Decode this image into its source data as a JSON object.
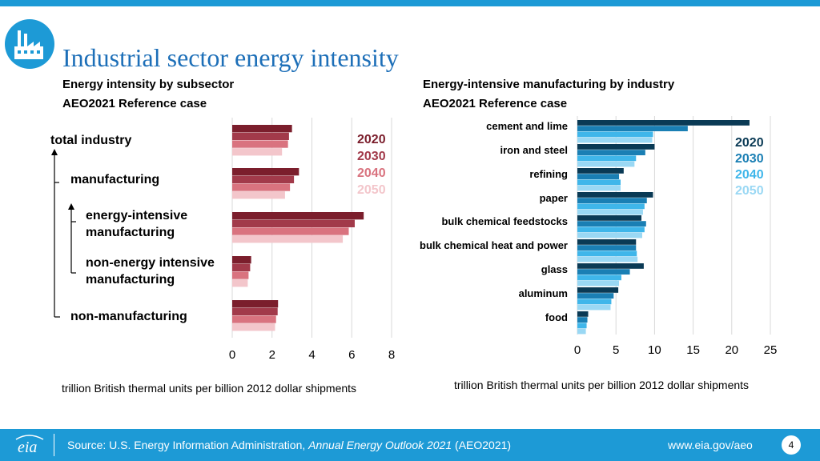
{
  "header": {
    "title": "Industrial sector energy intensity"
  },
  "left": {
    "subtitle1": "Energy intensity by subsector",
    "subtitle2": "AEO2021 Reference case",
    "labels": [
      "total industry",
      "manufacturing",
      "energy-intensive manufacturing",
      "non-energy intensive manufacturing",
      "non-manufacturing"
    ],
    "label_lines": [
      [
        "total industry"
      ],
      [
        "manufacturing"
      ],
      [
        "energy-intensive",
        "manufacturing"
      ],
      [
        "non-energy intensive",
        "manufacturing"
      ],
      [
        "non-manufacturing"
      ]
    ],
    "unit": "trillion British thermal units per billion 2012 dollar shipments"
  },
  "right": {
    "subtitle1": "Energy-intensive manufacturing by industry",
    "subtitle2": "AEO2021 Reference case",
    "unit": "trillion British thermal units per billion 2012 dollar shipments"
  },
  "footer": {
    "source_prefix": "Source: U.S. Energy Information Administration, ",
    "source_italic": "Annual Energy Outlook 2021",
    "source_suffix": " (AEO2021)",
    "url": "www.eia.gov/aeo",
    "page": "4",
    "logo_text": "eia"
  },
  "chart_data": [
    {
      "type": "bar",
      "orientation": "horizontal",
      "title": "Energy intensity by subsector",
      "categories": [
        "total industry",
        "manufacturing",
        "energy-intensive manufacturing",
        "non-energy intensive manufacturing",
        "non-manufacturing"
      ],
      "series": [
        {
          "name": "2020",
          "color": "#7b1e2c",
          "values": [
            3.0,
            3.35,
            6.6,
            0.95,
            2.3
          ]
        },
        {
          "name": "2030",
          "color": "#a23a4a",
          "values": [
            2.85,
            3.1,
            6.15,
            0.9,
            2.28
          ]
        },
        {
          "name": "2040",
          "color": "#d9737f",
          "values": [
            2.8,
            2.9,
            5.85,
            0.82,
            2.2
          ]
        },
        {
          "name": "2050",
          "color": "#f3c6cb",
          "values": [
            2.5,
            2.65,
            5.55,
            0.78,
            2.15
          ]
        }
      ],
      "xlim": [
        0,
        8
      ],
      "xticks": [
        "0",
        "2",
        "4",
        "6",
        "8"
      ],
      "xlabel": "trillion British thermal units per billion 2012 dollar shipments",
      "grid": true,
      "legend": "right"
    },
    {
      "type": "bar",
      "orientation": "horizontal",
      "title": "Energy-intensive manufacturing by industry",
      "categories": [
        "cement and lime",
        "iron and steel",
        "refining",
        "paper",
        "bulk chemical feedstocks",
        "bulk chemical heat and power",
        "glass",
        "aluminum",
        "food"
      ],
      "series": [
        {
          "name": "2020",
          "color": "#0a3a55",
          "values": [
            22.3,
            10.0,
            6.0,
            9.8,
            8.3,
            7.6,
            8.6,
            5.3,
            1.4
          ]
        },
        {
          "name": "2030",
          "color": "#1a7fb4",
          "values": [
            14.3,
            8.8,
            5.4,
            9.0,
            8.9,
            7.6,
            6.8,
            4.7,
            1.3
          ]
        },
        {
          "name": "2040",
          "color": "#3fb6ea",
          "values": [
            9.8,
            7.6,
            5.6,
            8.7,
            8.7,
            7.7,
            5.7,
            4.4,
            1.2
          ]
        },
        {
          "name": "2050",
          "color": "#9ad8f4",
          "values": [
            9.7,
            7.4,
            5.6,
            8.5,
            8.4,
            7.8,
            5.4,
            4.3,
            1.1
          ]
        }
      ],
      "xlim": [
        0,
        25
      ],
      "xticks": [
        "0",
        "5",
        "10",
        "15",
        "20",
        "25"
      ],
      "xlabel": "trillion British thermal units per billion 2012 dollar shipments",
      "grid": true,
      "legend": "right"
    }
  ]
}
